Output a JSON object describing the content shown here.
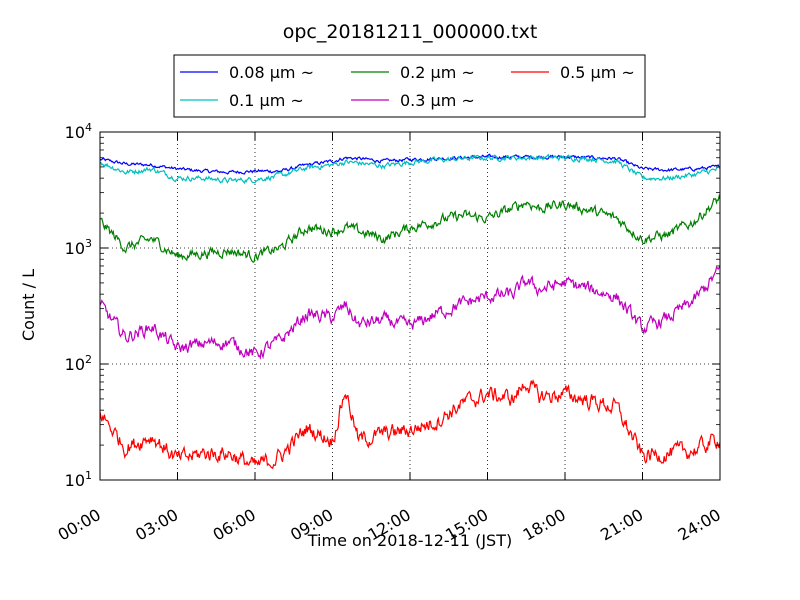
{
  "chart_data": {
    "type": "line",
    "title": "opc_20181211_000000.txt",
    "xlabel": "Time on 2018-12-11 (JST)",
    "ylabel": "Count / L",
    "yscale": "log",
    "ylim": [
      10,
      10000
    ],
    "xlim": [
      "00:00",
      "24:00"
    ],
    "grid": true,
    "legend_position": "top-center",
    "x_ticks": [
      "00:00",
      "03:00",
      "06:00",
      "09:00",
      "12:00",
      "15:00",
      "18:00",
      "21:00",
      "24:00"
    ],
    "y_ticks": [
      {
        "value": 10,
        "base": "10",
        "exp": "1"
      },
      {
        "value": 100,
        "base": "10",
        "exp": "2"
      },
      {
        "value": 1000,
        "base": "10",
        "exp": "3"
      },
      {
        "value": 10000,
        "base": "10",
        "exp": "4"
      }
    ],
    "x": [
      "00:00",
      "01:00",
      "02:00",
      "03:00",
      "04:00",
      "05:00",
      "06:00",
      "07:00",
      "08:00",
      "09:00",
      "09:30",
      "10:00",
      "11:00",
      "12:00",
      "13:00",
      "14:00",
      "15:00",
      "16:00",
      "16:30",
      "17:00",
      "18:00",
      "19:00",
      "20:00",
      "21:00",
      "22:00",
      "23:00",
      "24:00"
    ],
    "series": [
      {
        "name": "0.08 μm ~",
        "color": "#0000ff",
        "values": [
          5800,
          5300,
          5200,
          4800,
          4600,
          4500,
          4600,
          4600,
          5200,
          5600,
          6000,
          5900,
          5600,
          5800,
          5900,
          6000,
          6100,
          6100,
          6100,
          6100,
          6100,
          6000,
          5900,
          4800,
          4700,
          4800,
          5000
        ]
      },
      {
        "name": "0.1 μm ~",
        "color": "#00bfbf",
        "values": [
          5500,
          4500,
          4800,
          4000,
          4000,
          3800,
          3900,
          4200,
          4900,
          5200,
          5500,
          5400,
          5100,
          5500,
          5700,
          5900,
          6000,
          6000,
          6000,
          6000,
          6000,
          5900,
          5600,
          4000,
          4000,
          4300,
          4800
        ]
      },
      {
        "name": "0.2 μm ~",
        "color": "#008000",
        "values": [
          1700,
          1000,
          1200,
          850,
          900,
          950,
          850,
          1000,
          1500,
          1400,
          1500,
          1400,
          1200,
          1500,
          1700,
          1900,
          1800,
          2200,
          2500,
          2200,
          2400,
          2100,
          1800,
          1200,
          1300,
          1700,
          2700
        ]
      },
      {
        "name": "0.3 μm ~",
        "color": "#bf00bf",
        "values": [
          320,
          170,
          210,
          135,
          150,
          155,
          120,
          160,
          270,
          250,
          320,
          220,
          240,
          210,
          270,
          330,
          380,
          400,
          520,
          440,
          500,
          440,
          380,
          200,
          250,
          350,
          650
        ]
      },
      {
        "name": "0.5 μm ~",
        "color": "#ff0000",
        "values": [
          38,
          19,
          24,
          15,
          17,
          17,
          13,
          16,
          28,
          22,
          60,
          22,
          25,
          27,
          32,
          45,
          55,
          50,
          70,
          52,
          55,
          48,
          42,
          16,
          17,
          18,
          23
        ]
      }
    ]
  }
}
